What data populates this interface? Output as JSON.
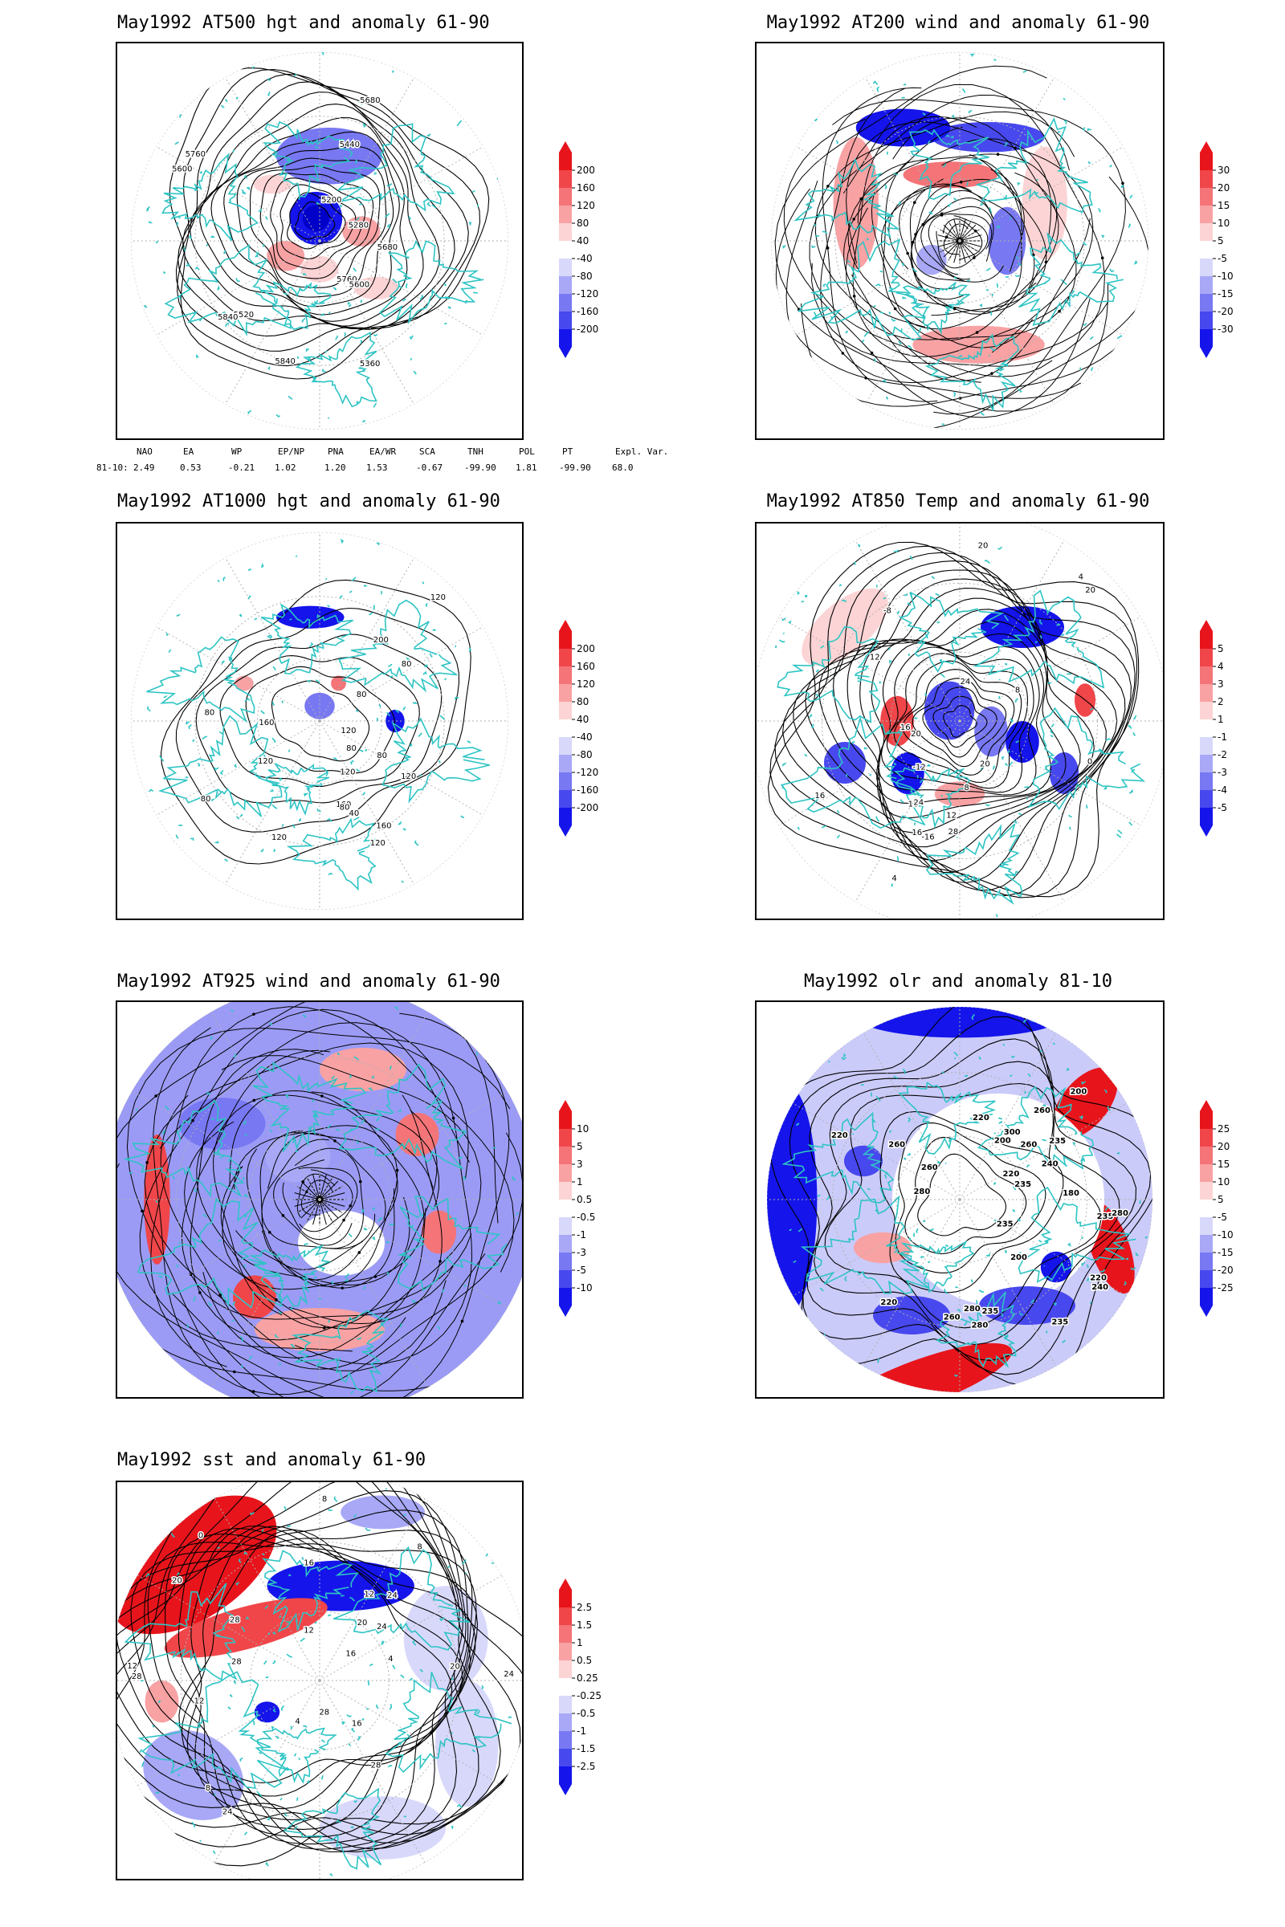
{
  "panels": [
    {
      "id": "p1",
      "title": "May1992 AT500 hgt and anomaly 61-90",
      "kind": "hgt500",
      "contour_labels": [
        "5840",
        "5760",
        "5680",
        "5600",
        "5200",
        "5280",
        "5360",
        "5440",
        "5520",
        "5600",
        "5680",
        "5760",
        "5840"
      ],
      "colorbar": [
        "200",
        "160",
        "120",
        "80",
        "40",
        "-40",
        "-80",
        "-120",
        "-160",
        "-200"
      ]
    },
    {
      "id": "p2",
      "title": "May1992 AT200 wind and anomaly 61-90",
      "kind": "wind200",
      "contour_labels": [],
      "colorbar": [
        "30",
        "20",
        "15",
        "10",
        "5",
        "-5",
        "-10",
        "-15",
        "-20",
        "-30"
      ]
    },
    {
      "id": "p3",
      "title": "May1992 AT1000 hgt and anomaly 61-90",
      "kind": "hgt1000",
      "contour_labels": [
        "120",
        "120",
        "120",
        "160",
        "120",
        "80",
        "120",
        "160",
        "40",
        "80",
        "160",
        "200",
        "80",
        "80",
        "120",
        "80",
        "80",
        "80",
        "120"
      ],
      "colorbar": [
        "200",
        "160",
        "120",
        "80",
        "40",
        "-40",
        "-80",
        "-120",
        "-160",
        "-200"
      ]
    },
    {
      "id": "p4",
      "title": "May1992 AT850 Temp and anomaly 61-90",
      "kind": "temp850",
      "contour_labels": [
        "16",
        "12",
        "8",
        "4",
        "20",
        "-16",
        "-12",
        "-8",
        "0",
        "4",
        "8",
        "12",
        "16",
        "20",
        "24",
        "16",
        "20",
        "24",
        "28",
        "16",
        "20"
      ],
      "colorbar": [
        "5",
        "4",
        "3",
        "2",
        "1",
        "-1",
        "-2",
        "-3",
        "-4",
        "-5"
      ]
    },
    {
      "id": "p5",
      "title": "May1992 AT925 wind and anomaly 61-90",
      "kind": "wind925",
      "contour_labels": [],
      "colorbar": [
        "10",
        "5",
        "3",
        "1",
        "0.5",
        "-0.5",
        "-1",
        "-3",
        "-5",
        "-10"
      ]
    },
    {
      "id": "p6",
      "title": "May1992 olr and anomaly 81-10",
      "kind": "olr",
      "contour_labels": [
        "220",
        "260",
        "235",
        "220",
        "235",
        "260",
        "220",
        "235",
        "260",
        "240",
        "235",
        "280",
        "200",
        "180",
        "200",
        "220",
        "280",
        "240",
        "235",
        "280",
        "260",
        "220",
        "200",
        "300",
        "280",
        "260",
        "235"
      ],
      "colorbar": [
        "25",
        "20",
        "15",
        "10",
        "5",
        "-5",
        "-10",
        "-15",
        "-20",
        "-25"
      ]
    },
    {
      "id": "p7",
      "title": "May1992 sst and anomaly 61-90",
      "kind": "sst",
      "contour_labels": [
        "28",
        "28",
        "24",
        "24",
        "20",
        "20",
        "16",
        "16",
        "12",
        "12",
        "8",
        "8",
        "4",
        "28",
        "24",
        "0",
        "4",
        "8",
        "12",
        "16",
        "20",
        "24",
        "28",
        "28",
        "12"
      ],
      "colorbar": [
        "2.5",
        "1.5",
        "1",
        "0.5",
        "0.25",
        "-0.25",
        "-0.5",
        "-1",
        "-1.5",
        "-2.5"
      ]
    }
  ],
  "indices": {
    "headers": [
      "NAO",
      "EA",
      "WP",
      "EP/NP",
      "PNA",
      "EA/WR",
      "SCA",
      "TNH",
      "POL",
      "PT",
      "Expl. Var."
    ],
    "row_label": "81-10:",
    "values": [
      "2.49",
      "0.53",
      "-0.21",
      "1.02",
      "1.20",
      "1.53",
      "-0.67",
      "-99.90",
      "1.81",
      "-99.90",
      "68.0"
    ]
  },
  "colors": {
    "coast": "#2ec4c4",
    "grid": "#b0b0b0",
    "contour": "#000000",
    "cb_pos": [
      "#e8141b",
      "#f0464a",
      "#f47478",
      "#f8a2a4",
      "#fcd4d5"
    ],
    "cb_neg": [
      "#d8d8fb",
      "#a8a8f7",
      "#7878f3",
      "#4848ef",
      "#1414eb"
    ]
  }
}
